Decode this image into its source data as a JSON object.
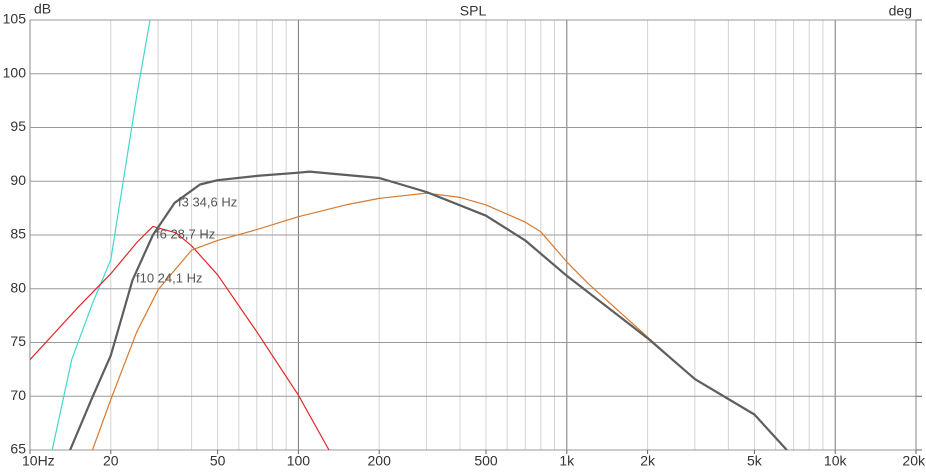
{
  "chart_data": {
    "type": "line",
    "title": "SPL",
    "y_label": "dB",
    "y2_label": "deg",
    "xscale": "log",
    "grid": true,
    "xlim": [
      10,
      20000
    ],
    "ylim": [
      65,
      105
    ],
    "xticks": [
      {
        "value": 10,
        "label": "10Hz"
      },
      20,
      50,
      100,
      200,
      500,
      {
        "value": 1000,
        "label": "1k"
      },
      {
        "value": 2000,
        "label": "2k"
      },
      {
        "value": 5000,
        "label": "5k"
      },
      {
        "value": 10000,
        "label": "10k"
      },
      {
        "value": 20000,
        "label": "20k"
      }
    ],
    "xgrid": [
      20,
      30,
      40,
      50,
      60,
      70,
      80,
      90,
      100,
      200,
      300,
      400,
      500,
      600,
      700,
      800,
      900,
      1000,
      2000,
      3000,
      4000,
      5000,
      6000,
      7000,
      8000,
      9000,
      10000
    ],
    "yticks": [
      105,
      100,
      95,
      90,
      85,
      80,
      75,
      70,
      65
    ],
    "series": [
      {
        "color": "#40d8d0",
        "x": [
          12.1,
          14.3,
          17,
          20,
          25,
          28
        ],
        "values": [
          65,
          73.4,
          78.5,
          82.7,
          98,
          105
        ]
      },
      {
        "color": "#e02828",
        "x": [
          10,
          15,
          20,
          25,
          28.7,
          35,
          40,
          50,
          70,
          100,
          130
        ],
        "values": [
          73.4,
          78.2,
          81.4,
          84.3,
          85.8,
          85.2,
          84,
          81.3,
          76,
          70.1,
          65
        ]
      },
      {
        "color": "#d87a30",
        "x": [
          17.1,
          20,
          25,
          30,
          40,
          50,
          70,
          100,
          150,
          200,
          300,
          400,
          500,
          700,
          800,
          1000,
          1200,
          2000,
          3000,
          5000,
          6600
        ],
        "values": [
          65,
          69.7,
          76,
          79.9,
          83.6,
          84.5,
          85.5,
          86.7,
          87.8,
          88.4,
          88.9,
          88.5,
          87.8,
          86.2,
          85.3,
          82.5,
          80.5,
          75.5,
          71.6,
          68.3,
          65
        ]
      },
      {
        "color": "#5e5e5e",
        "x": [
          14.1,
          17,
          20,
          24.1,
          28.7,
          34.6,
          43,
          50,
          70,
          100,
          110,
          200,
          300,
          500,
          700,
          1000,
          2000,
          3000,
          5000,
          6600
        ],
        "values": [
          65,
          69.8,
          73.8,
          80.8,
          85,
          88,
          89.7,
          90.1,
          90.5,
          90.8,
          90.9,
          90.3,
          89,
          86.8,
          84.5,
          81.2,
          75.4,
          71.6,
          68.3,
          65
        ]
      }
    ],
    "annotations": [
      "f3 34,6 Hz",
      "f6 28,7 Hz",
      "f10 24,1 Hz"
    ]
  }
}
